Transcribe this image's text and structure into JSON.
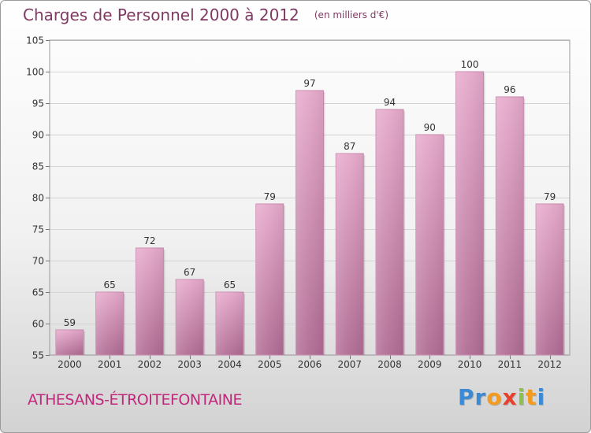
{
  "header": {
    "title": "Charges de Personnel 2000 à 2012",
    "subtitle": "(en milliers d'€)"
  },
  "footer": {
    "town": "ATHESANS-ÉTROITEFONTAINE",
    "logo": {
      "text": "Proxiti",
      "letters": [
        {
          "ch": "P",
          "color": "#3b8ad6"
        },
        {
          "ch": "r",
          "color": "#3b8ad6"
        },
        {
          "ch": "o",
          "color": "#f39b1e"
        },
        {
          "ch": "x",
          "color": "#e8402c"
        },
        {
          "ch": "i",
          "color": "#8bc34a"
        },
        {
          "ch": "t",
          "color": "#f39b1e"
        },
        {
          "ch": "i",
          "color": "#3b8ad6"
        }
      ]
    }
  },
  "chart_data": {
    "type": "bar",
    "categories": [
      "2000",
      "2001",
      "2002",
      "2003",
      "2004",
      "2005",
      "2006",
      "2007",
      "2008",
      "2009",
      "2010",
      "2011",
      "2012"
    ],
    "values": [
      59,
      65,
      72,
      67,
      65,
      79,
      97,
      87,
      94,
      90,
      100,
      96,
      79
    ],
    "ylim": [
      55,
      105
    ],
    "yticks": [
      55,
      60,
      65,
      70,
      75,
      80,
      85,
      90,
      95,
      100,
      105
    ],
    "grid": true,
    "bar_color": "#d88fb8",
    "title": "Charges de Personnel 2000 à 2012",
    "xlabel": "",
    "ylabel": ""
  }
}
